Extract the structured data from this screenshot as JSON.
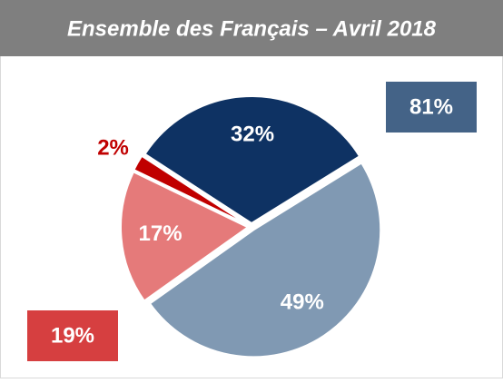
{
  "chart_data": {
    "type": "pie",
    "title": "Ensemble des Français – Avril 2018",
    "values": [
      32,
      49,
      17,
      2
    ],
    "value_labels": [
      "32%",
      "49%",
      "17%",
      "2%"
    ],
    "colors": [
      "#0e3263",
      "#8099b3",
      "#e57a7a",
      "#c00000"
    ],
    "label_colors": [
      "#ffffff",
      "#ffffff",
      "#ffffff",
      "#c00000"
    ],
    "start_angle": -57,
    "annotations": [
      {
        "value": 81,
        "label": "81%",
        "color": "#446387"
      },
      {
        "value": 19,
        "label": "19%",
        "color": "#d63f40"
      }
    ]
  }
}
